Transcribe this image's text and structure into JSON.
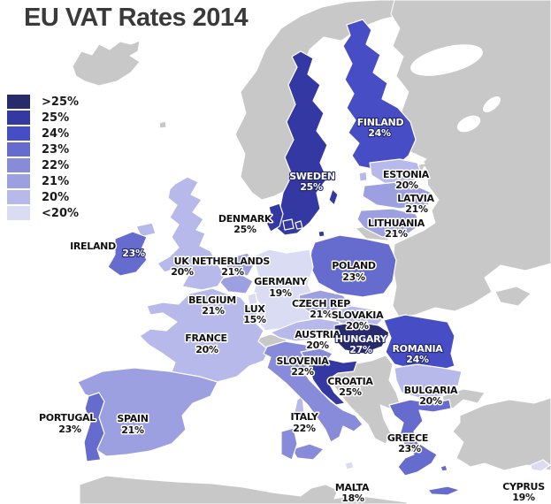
{
  "title": "EU VAT Rates 2014",
  "colors": {
    "sea": "#ffffff",
    "non_eu_land": "#c8c8c8",
    "title_text": "#3a3a3a",
    "label_dark": "#111111",
    "label_light": "#ffffff",
    "border": "#ffffff"
  },
  "legend": {
    "items": [
      {
        "label": ">25%",
        "color": "#272a6b"
      },
      {
        "label": "25%",
        "color": "#3338a2"
      },
      {
        "label": "24%",
        "color": "#474dc4"
      },
      {
        "label": "23%",
        "color": "#666bce"
      },
      {
        "label": "22%",
        "color": "#878bd9"
      },
      {
        "label": "21%",
        "color": "#9c9fe0"
      },
      {
        "label": "20%",
        "color": "#b6b9e9"
      },
      {
        "label": "<20%",
        "color": "#dadcf4"
      }
    ]
  },
  "countries": {
    "sweden": {
      "name": "SWEDEN",
      "rate": "25%",
      "fill": "#3338a2",
      "text": "light"
    },
    "finland": {
      "name": "FINLAND",
      "rate": "24%",
      "fill": "#474dc4",
      "text": "light"
    },
    "denmark": {
      "name": "DENMARK",
      "rate": "25%",
      "fill": "#3338a2",
      "text": "dark"
    },
    "estonia": {
      "name": "ESTONIA",
      "rate": "20%",
      "fill": "#b6b9e9",
      "text": "dark"
    },
    "latvia": {
      "name": "LATVIA",
      "rate": "21%",
      "fill": "#9c9fe0",
      "text": "dark"
    },
    "lithuania": {
      "name": "LITHUANIA",
      "rate": "21%",
      "fill": "#9c9fe0",
      "text": "dark"
    },
    "ireland": {
      "name": "IRELAND",
      "rate": "23%",
      "fill": "#666bce",
      "text": "dark",
      "rate_text": "light"
    },
    "uk": {
      "name": "UK",
      "rate": "20%",
      "fill": "#b6b9e9",
      "text": "dark"
    },
    "netherlands": {
      "name": "NETHERLANDS",
      "rate": "21%",
      "fill": "#9c9fe0",
      "text": "dark"
    },
    "belgium": {
      "name": "BELGIUM",
      "rate": "21%",
      "fill": "#9c9fe0",
      "text": "dark"
    },
    "luxembourg": {
      "name": "LUX",
      "rate": "15%",
      "fill": "#dadcf4",
      "text": "dark"
    },
    "germany": {
      "name": "GERMANY",
      "rate": "19%",
      "fill": "#dadcf4",
      "text": "dark"
    },
    "france": {
      "name": "FRANCE",
      "rate": "20%",
      "fill": "#b6b9e9",
      "text": "dark"
    },
    "portugal": {
      "name": "PORTUGAL",
      "rate": "23%",
      "fill": "#666bce",
      "text": "dark"
    },
    "spain": {
      "name": "SPAIN",
      "rate": "21%",
      "fill": "#9c9fe0",
      "text": "dark"
    },
    "italy": {
      "name": "ITALY",
      "rate": "22%",
      "fill": "#878bd9",
      "text": "dark"
    },
    "poland": {
      "name": "POLAND",
      "rate": "23%",
      "fill": "#666bce",
      "text": "dark"
    },
    "czech_republic": {
      "name": "CZECH REP",
      "rate": "21%",
      "fill": "#9c9fe0",
      "text": "dark"
    },
    "slovakia": {
      "name": "SLOVAKIA",
      "rate": "20%",
      "fill": "#b6b9e9",
      "text": "dark"
    },
    "austria": {
      "name": "AUSTRIA",
      "rate": "20%",
      "fill": "#b6b9e9",
      "text": "dark"
    },
    "hungary": {
      "name": "HUNGARY",
      "rate": "27%",
      "fill": "#272a6b",
      "text": "light"
    },
    "slovenia": {
      "name": "SLOVENIA",
      "rate": "22%",
      "fill": "#878bd9",
      "text": "dark"
    },
    "croatia": {
      "name": "CROATIA",
      "rate": "25%",
      "fill": "#3338a2",
      "text": "dark"
    },
    "romania": {
      "name": "ROMANIA",
      "rate": "24%",
      "fill": "#474dc4",
      "text": "light"
    },
    "bulgaria": {
      "name": "BULGARIA",
      "rate": "20%",
      "fill": "#b6b9e9",
      "text": "dark"
    },
    "greece": {
      "name": "GREECE",
      "rate": "23%",
      "fill": "#666bce",
      "text": "dark"
    },
    "malta": {
      "name": "MALTA",
      "rate": "18%",
      "fill": "#dadcf4",
      "text": "dark"
    },
    "cyprus": {
      "name": "CYPRUS",
      "rate": "19%",
      "fill": "#dadcf4",
      "text": "dark"
    }
  }
}
